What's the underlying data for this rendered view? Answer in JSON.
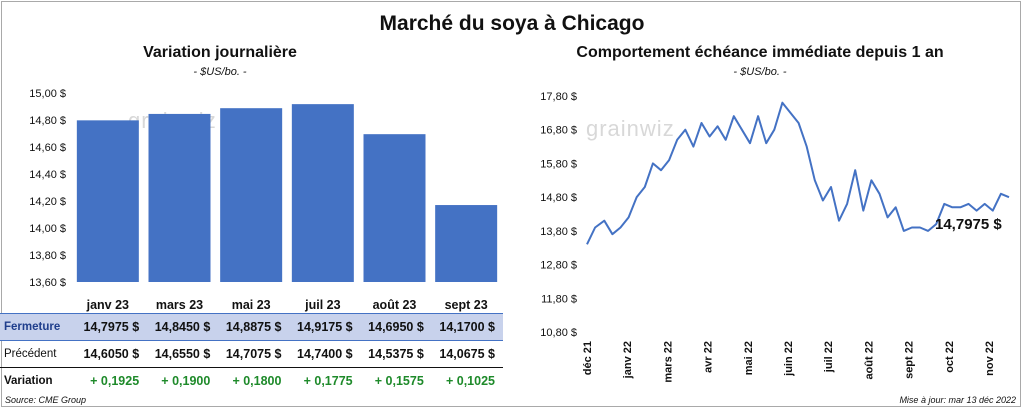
{
  "title": "Marché du soya à Chicago",
  "watermark": "grainwiz",
  "source": "Source: CME Group",
  "updated": "Mise à jour: mar 13 déc 2022",
  "colors": {
    "bar": "#4472c4",
    "line": "#4472c4",
    "positive": "#1e8a2a",
    "highlight_row": "#c8d2ec"
  },
  "chart_data": [
    {
      "type": "bar",
      "title": "Variation journalière",
      "subtitle": "- $US/bo. -",
      "categories": [
        "janv 23",
        "mars 23",
        "mai 23",
        "juil 23",
        "août 23",
        "sept 23"
      ],
      "values": [
        14.7975,
        14.845,
        14.8875,
        14.9175,
        14.695,
        14.17
      ],
      "ylim": [
        13.6,
        15.0
      ],
      "yticks": [
        "13,60 $",
        "13,80 $",
        "14,00 $",
        "14,20 $",
        "14,40 $",
        "14,60 $",
        "14,80 $",
        "15,00 $"
      ],
      "grid": false,
      "table": {
        "rows": [
          {
            "label": "Fermeture",
            "values": [
              "14,7975  $",
              "14,8450  $",
              "14,8875  $",
              "14,9175  $",
              "14,6950  $",
              "14,1700  $"
            ]
          },
          {
            "label": "Précédent",
            "values": [
              "14,6050  $",
              "14,6550  $",
              "14,7075  $",
              "14,7400  $",
              "14,5375  $",
              "14,0675  $"
            ]
          },
          {
            "label": "Variation",
            "values": [
              "+ 0,1925",
              "+ 0,1900",
              "+ 0,1800",
              "+ 0,1775",
              "+ 0,1575",
              "+ 0,1025"
            ]
          }
        ]
      }
    },
    {
      "type": "line",
      "title": "Comportement  échéance immédiate depuis 1 an",
      "subtitle": "- $US/bo. -",
      "ylim": [
        10.8,
        17.8
      ],
      "yticks": [
        "10,80 $",
        "11,80 $",
        "12,80 $",
        "13,80 $",
        "14,80 $",
        "15,80 $",
        "16,80 $",
        "17,80 $"
      ],
      "xticks": [
        "déc 21",
        "janv 22",
        "mars 22",
        "avr 22",
        "mai 22",
        "juin 22",
        "juil 22",
        "août 22",
        "sept 22",
        "oct 22",
        "nov 22"
      ],
      "grid": false,
      "last_value_label": "14,7975 $",
      "x": [
        "2021-12-13",
        "2021-12-20",
        "2021-12-28",
        "2022-01-04",
        "2022-01-11",
        "2022-01-18",
        "2022-01-25",
        "2022-02-01",
        "2022-02-08",
        "2022-02-15",
        "2022-02-22",
        "2022-03-01",
        "2022-03-08",
        "2022-03-15",
        "2022-03-22",
        "2022-03-29",
        "2022-04-05",
        "2022-04-12",
        "2022-04-19",
        "2022-04-26",
        "2022-05-03",
        "2022-05-10",
        "2022-05-17",
        "2022-05-24",
        "2022-05-31",
        "2022-06-07",
        "2022-06-14",
        "2022-06-21",
        "2022-06-28",
        "2022-07-05",
        "2022-07-12",
        "2022-07-19",
        "2022-07-26",
        "2022-08-02",
        "2022-08-09",
        "2022-08-16",
        "2022-08-23",
        "2022-08-30",
        "2022-09-06",
        "2022-09-13",
        "2022-09-20",
        "2022-09-27",
        "2022-10-04",
        "2022-10-11",
        "2022-10-18",
        "2022-10-25",
        "2022-11-01",
        "2022-11-08",
        "2022-11-15",
        "2022-11-22",
        "2022-11-29",
        "2022-12-06",
        "2022-12-13"
      ],
      "y": [
        13.4,
        13.9,
        14.1,
        13.7,
        13.9,
        14.2,
        14.8,
        15.1,
        15.8,
        15.6,
        15.9,
        16.5,
        16.8,
        16.3,
        17.0,
        16.6,
        16.9,
        16.5,
        17.2,
        16.8,
        16.4,
        17.2,
        16.4,
        16.8,
        17.6,
        17.3,
        17.0,
        16.3,
        15.3,
        14.7,
        15.1,
        14.1,
        14.6,
        15.6,
        14.4,
        15.3,
        14.9,
        14.2,
        14.5,
        13.8,
        13.9,
        13.9,
        13.8,
        14.0,
        14.6,
        14.5,
        14.5,
        14.6,
        14.4,
        14.6,
        14.4,
        14.9,
        14.7975
      ]
    }
  ]
}
